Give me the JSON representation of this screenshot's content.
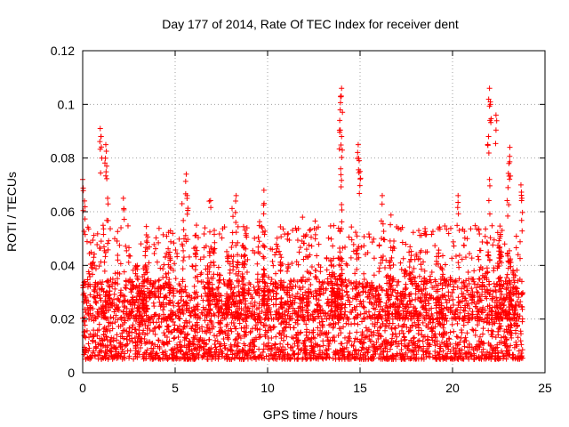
{
  "chart_data": {
    "type": "scatter",
    "title": "Day 177 of 2014, Rate Of TEC Index for receiver dent",
    "xlabel": "GPS time / hours",
    "ylabel": "ROTI / TECUs",
    "xlim": [
      0,
      25
    ],
    "ylim": [
      0,
      0.12
    ],
    "xticks": [
      0,
      5,
      10,
      15,
      20,
      25
    ],
    "yticks": [
      0,
      0.02,
      0.04,
      0.06,
      0.08,
      0.1,
      0.12
    ],
    "xtick_labels": [
      "0",
      "5",
      "10",
      "15",
      "20",
      "25"
    ],
    "ytick_labels": [
      "0",
      "0.02",
      "0.04",
      "0.06",
      "0.08",
      "0.1",
      "0.12"
    ],
    "grid": true,
    "marker": "+",
    "color": "#ff0000",
    "data_range_hours": [
      0,
      23.8
    ],
    "notable_peaks": [
      {
        "x": 0.0,
        "y": 0.072
      },
      {
        "x": 0.1,
        "y": 0.064
      },
      {
        "x": 0.95,
        "y": 0.091
      },
      {
        "x": 1.0,
        "y": 0.088
      },
      {
        "x": 1.25,
        "y": 0.085
      },
      {
        "x": 1.3,
        "y": 0.077
      },
      {
        "x": 1.35,
        "y": 0.065
      },
      {
        "x": 2.2,
        "y": 0.065
      },
      {
        "x": 5.6,
        "y": 0.074
      },
      {
        "x": 5.65,
        "y": 0.066
      },
      {
        "x": 8.3,
        "y": 0.066
      },
      {
        "x": 9.8,
        "y": 0.068
      },
      {
        "x": 14.0,
        "y": 0.106
      },
      {
        "x": 13.95,
        "y": 0.103
      },
      {
        "x": 13.9,
        "y": 0.094
      },
      {
        "x": 14.0,
        "y": 0.088
      },
      {
        "x": 13.95,
        "y": 0.076
      },
      {
        "x": 14.9,
        "y": 0.085
      },
      {
        "x": 14.95,
        "y": 0.079
      },
      {
        "x": 15.0,
        "y": 0.075
      },
      {
        "x": 16.2,
        "y": 0.066
      },
      {
        "x": 20.3,
        "y": 0.066
      },
      {
        "x": 22.0,
        "y": 0.106
      },
      {
        "x": 22.05,
        "y": 0.1
      },
      {
        "x": 22.35,
        "y": 0.096
      },
      {
        "x": 21.95,
        "y": 0.088
      },
      {
        "x": 22.0,
        "y": 0.072
      },
      {
        "x": 23.1,
        "y": 0.084
      },
      {
        "x": 23.05,
        "y": 0.078
      },
      {
        "x": 23.0,
        "y": 0.069
      },
      {
        "x": 23.7,
        "y": 0.07
      },
      {
        "x": 23.75,
        "y": 0.065
      }
    ],
    "bulk_band_y": [
      0.005,
      0.035
    ],
    "series_description": "Dense scatter of ROTI samples across all satellites"
  }
}
